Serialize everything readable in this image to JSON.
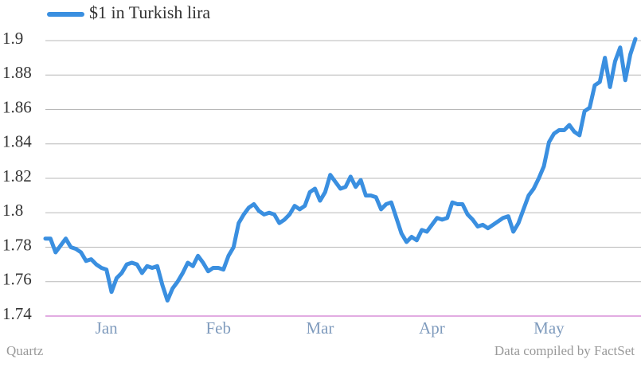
{
  "chart_data": {
    "type": "line",
    "legend": "top-left",
    "source": "Data compiled by FactSet",
    "credit": "Quartz",
    "grid": true,
    "grid_color": "#b8b8b8",
    "baseline_color": "#c65ac6",
    "ylim": [
      1.74,
      1.9
    ],
    "yticks": [
      1.74,
      1.76,
      1.78,
      1.8,
      1.82,
      1.84,
      1.86,
      1.88,
      1.9
    ],
    "categories": [
      null,
      null,
      null,
      null,
      null,
      null,
      null,
      null,
      null,
      null,
      null,
      null,
      "Jan",
      null,
      null,
      null,
      null,
      null,
      null,
      null,
      null,
      null,
      null,
      null,
      null,
      null,
      null,
      null,
      null,
      null,
      null,
      null,
      null,
      null,
      "Feb",
      null,
      null,
      null,
      null,
      null,
      null,
      null,
      null,
      null,
      null,
      null,
      null,
      null,
      null,
      null,
      null,
      null,
      null,
      null,
      "Mar",
      null,
      null,
      null,
      null,
      null,
      null,
      null,
      null,
      null,
      null,
      null,
      null,
      null,
      null,
      null,
      null,
      null,
      null,
      null,
      null,
      null,
      "Apr",
      null,
      null,
      null,
      null,
      null,
      null,
      null,
      null,
      null,
      null,
      null,
      null,
      null,
      null,
      null,
      null,
      null,
      null,
      null,
      null,
      null,
      null,
      "May",
      null,
      null,
      null,
      null,
      null,
      null,
      null,
      null,
      null,
      null,
      null,
      null,
      null,
      null,
      null,
      null,
      null
    ],
    "series": [
      {
        "name": "$1 in Turkish lira",
        "color": "#3a8fe0",
        "values": [
          1.785,
          1.785,
          1.777,
          1.781,
          1.785,
          1.78,
          1.779,
          1.777,
          1.772,
          1.773,
          1.77,
          1.768,
          1.767,
          1.754,
          1.762,
          1.765,
          1.77,
          1.771,
          1.77,
          1.765,
          1.769,
          1.768,
          1.769,
          1.758,
          1.749,
          1.756,
          1.76,
          1.765,
          1.771,
          1.769,
          1.775,
          1.771,
          1.766,
          1.768,
          1.768,
          1.767,
          1.775,
          1.78,
          1.794,
          1.799,
          1.803,
          1.805,
          1.801,
          1.799,
          1.8,
          1.799,
          1.794,
          1.796,
          1.799,
          1.804,
          1.802,
          1.804,
          1.812,
          1.814,
          1.807,
          1.812,
          1.822,
          1.818,
          1.814,
          1.815,
          1.821,
          1.815,
          1.819,
          1.81,
          1.81,
          1.809,
          1.802,
          1.805,
          1.806,
          1.797,
          1.788,
          1.783,
          1.786,
          1.784,
          1.79,
          1.789,
          1.793,
          1.797,
          1.796,
          1.797,
          1.806,
          1.805,
          1.805,
          1.799,
          1.796,
          1.792,
          1.793,
          1.791,
          1.793,
          1.795,
          1.797,
          1.798,
          1.789,
          1.794,
          1.802,
          1.81,
          1.814,
          1.82,
          1.827,
          1.841,
          1.846,
          1.848,
          1.848,
          1.851,
          1.847,
          1.845,
          1.859,
          1.861,
          1.874,
          1.876,
          1.89,
          1.873,
          1.888,
          1.896,
          1.877,
          1.892,
          1.901
        ]
      }
    ]
  }
}
